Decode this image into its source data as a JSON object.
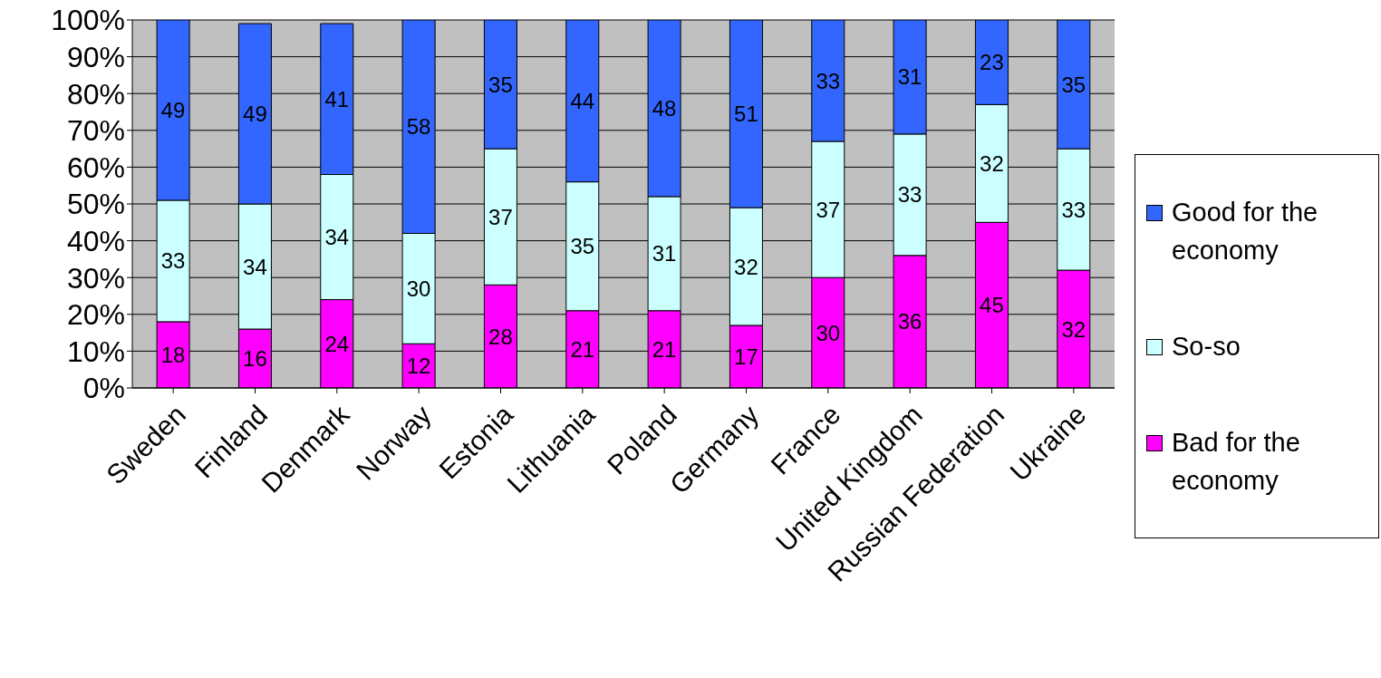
{
  "chart_data": {
    "type": "bar",
    "stacked": true,
    "categories": [
      "Sweden",
      "Finland",
      "Denmark",
      "Norway",
      "Estonia",
      "Lithuania",
      "Poland",
      "Germany",
      "France",
      "United Kingdom",
      "Russian Federation",
      "Ukraine"
    ],
    "series": [
      {
        "name": "Bad for the economy",
        "color": "#ff00ff",
        "values": [
          18,
          16,
          24,
          12,
          28,
          21,
          21,
          17,
          30,
          36,
          45,
          32
        ]
      },
      {
        "name": "So-so",
        "color": "#ccffff",
        "values": [
          33,
          34,
          34,
          30,
          37,
          35,
          31,
          32,
          37,
          33,
          32,
          33
        ]
      },
      {
        "name": "Good for the economy",
        "color": "#3366ff",
        "values": [
          49,
          49,
          41,
          58,
          35,
          44,
          48,
          51,
          33,
          31,
          23,
          35
        ]
      }
    ],
    "ylim": [
      0,
      100
    ],
    "yticks": [
      {
        "value": 0,
        "label": "0%"
      },
      {
        "value": 10,
        "label": "10%"
      },
      {
        "value": 20,
        "label": "20%"
      },
      {
        "value": 30,
        "label": "30%"
      },
      {
        "value": 40,
        "label": "40%"
      },
      {
        "value": 50,
        "label": "50%"
      },
      {
        "value": 60,
        "label": "60%"
      },
      {
        "value": 70,
        "label": "70%"
      },
      {
        "value": 80,
        "label": "80%"
      },
      {
        "value": 90,
        "label": "90%"
      },
      {
        "value": 100,
        "label": "100%"
      }
    ],
    "grid": "y",
    "legend": "right",
    "data_labels": true
  }
}
